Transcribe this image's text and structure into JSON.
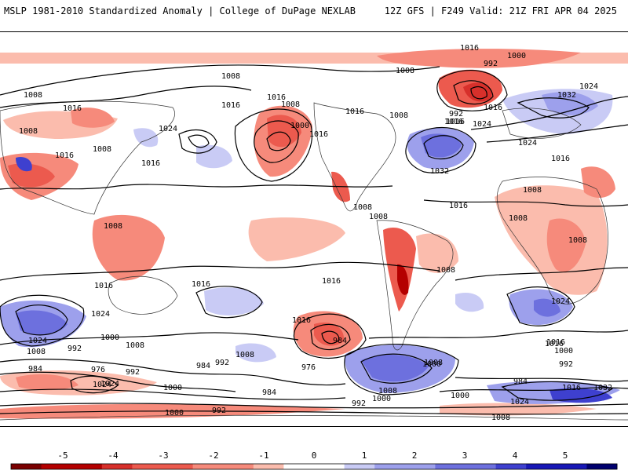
{
  "header": {
    "left_title": "MSLP 1981-2010 Standardized Anomaly | College of DuPage NEXLAB",
    "right_title": "12Z GFS | F249 Valid: 21Z FRI APR 04 2025"
  },
  "colorbar": {
    "ticks": [
      "-5",
      "-4",
      "-3",
      "-2",
      "-1",
      "0",
      "1",
      "2",
      "3",
      "4",
      "5"
    ],
    "colors": [
      "#b40000",
      "#d7302b",
      "#ec5a4e",
      "#f68a7b",
      "#fbbcad",
      "#ffffff",
      "#c9cbf5",
      "#9da0ec",
      "#6d70de",
      "#3e40cf",
      "#1818b6"
    ]
  },
  "map": {
    "title_none": "",
    "isobar_labels": [
      "1008",
      "1008",
      "1016",
      "1016",
      "1008",
      "1016",
      "1016",
      "1008",
      "1000",
      "1016",
      "1016",
      "1024",
      "1008",
      "1016",
      "1032",
      "1024",
      "1008",
      "1016",
      "1016",
      "1000",
      "992",
      "1008",
      "1016",
      "992",
      "1016",
      "1024",
      "1032",
      "1024",
      "1016",
      "1008",
      "1008",
      "1016",
      "1008",
      "1008",
      "1008",
      "1008",
      "1016",
      "1016",
      "1016",
      "1008",
      "1024",
      "1024",
      "1016",
      "1024",
      "1000",
      "992",
      "1008",
      "984",
      "1008",
      "976",
      "976",
      "1008",
      "1016",
      "992",
      "984",
      "992",
      "1000",
      "1024",
      "984",
      "992",
      "1000",
      "984",
      "1000",
      "992",
      "1008",
      "984",
      "1016",
      "1032",
      "1024",
      "1000",
      "1008",
      "1000",
      "992",
      "1000",
      "1008",
      "1016",
      "1024"
    ]
  }
}
